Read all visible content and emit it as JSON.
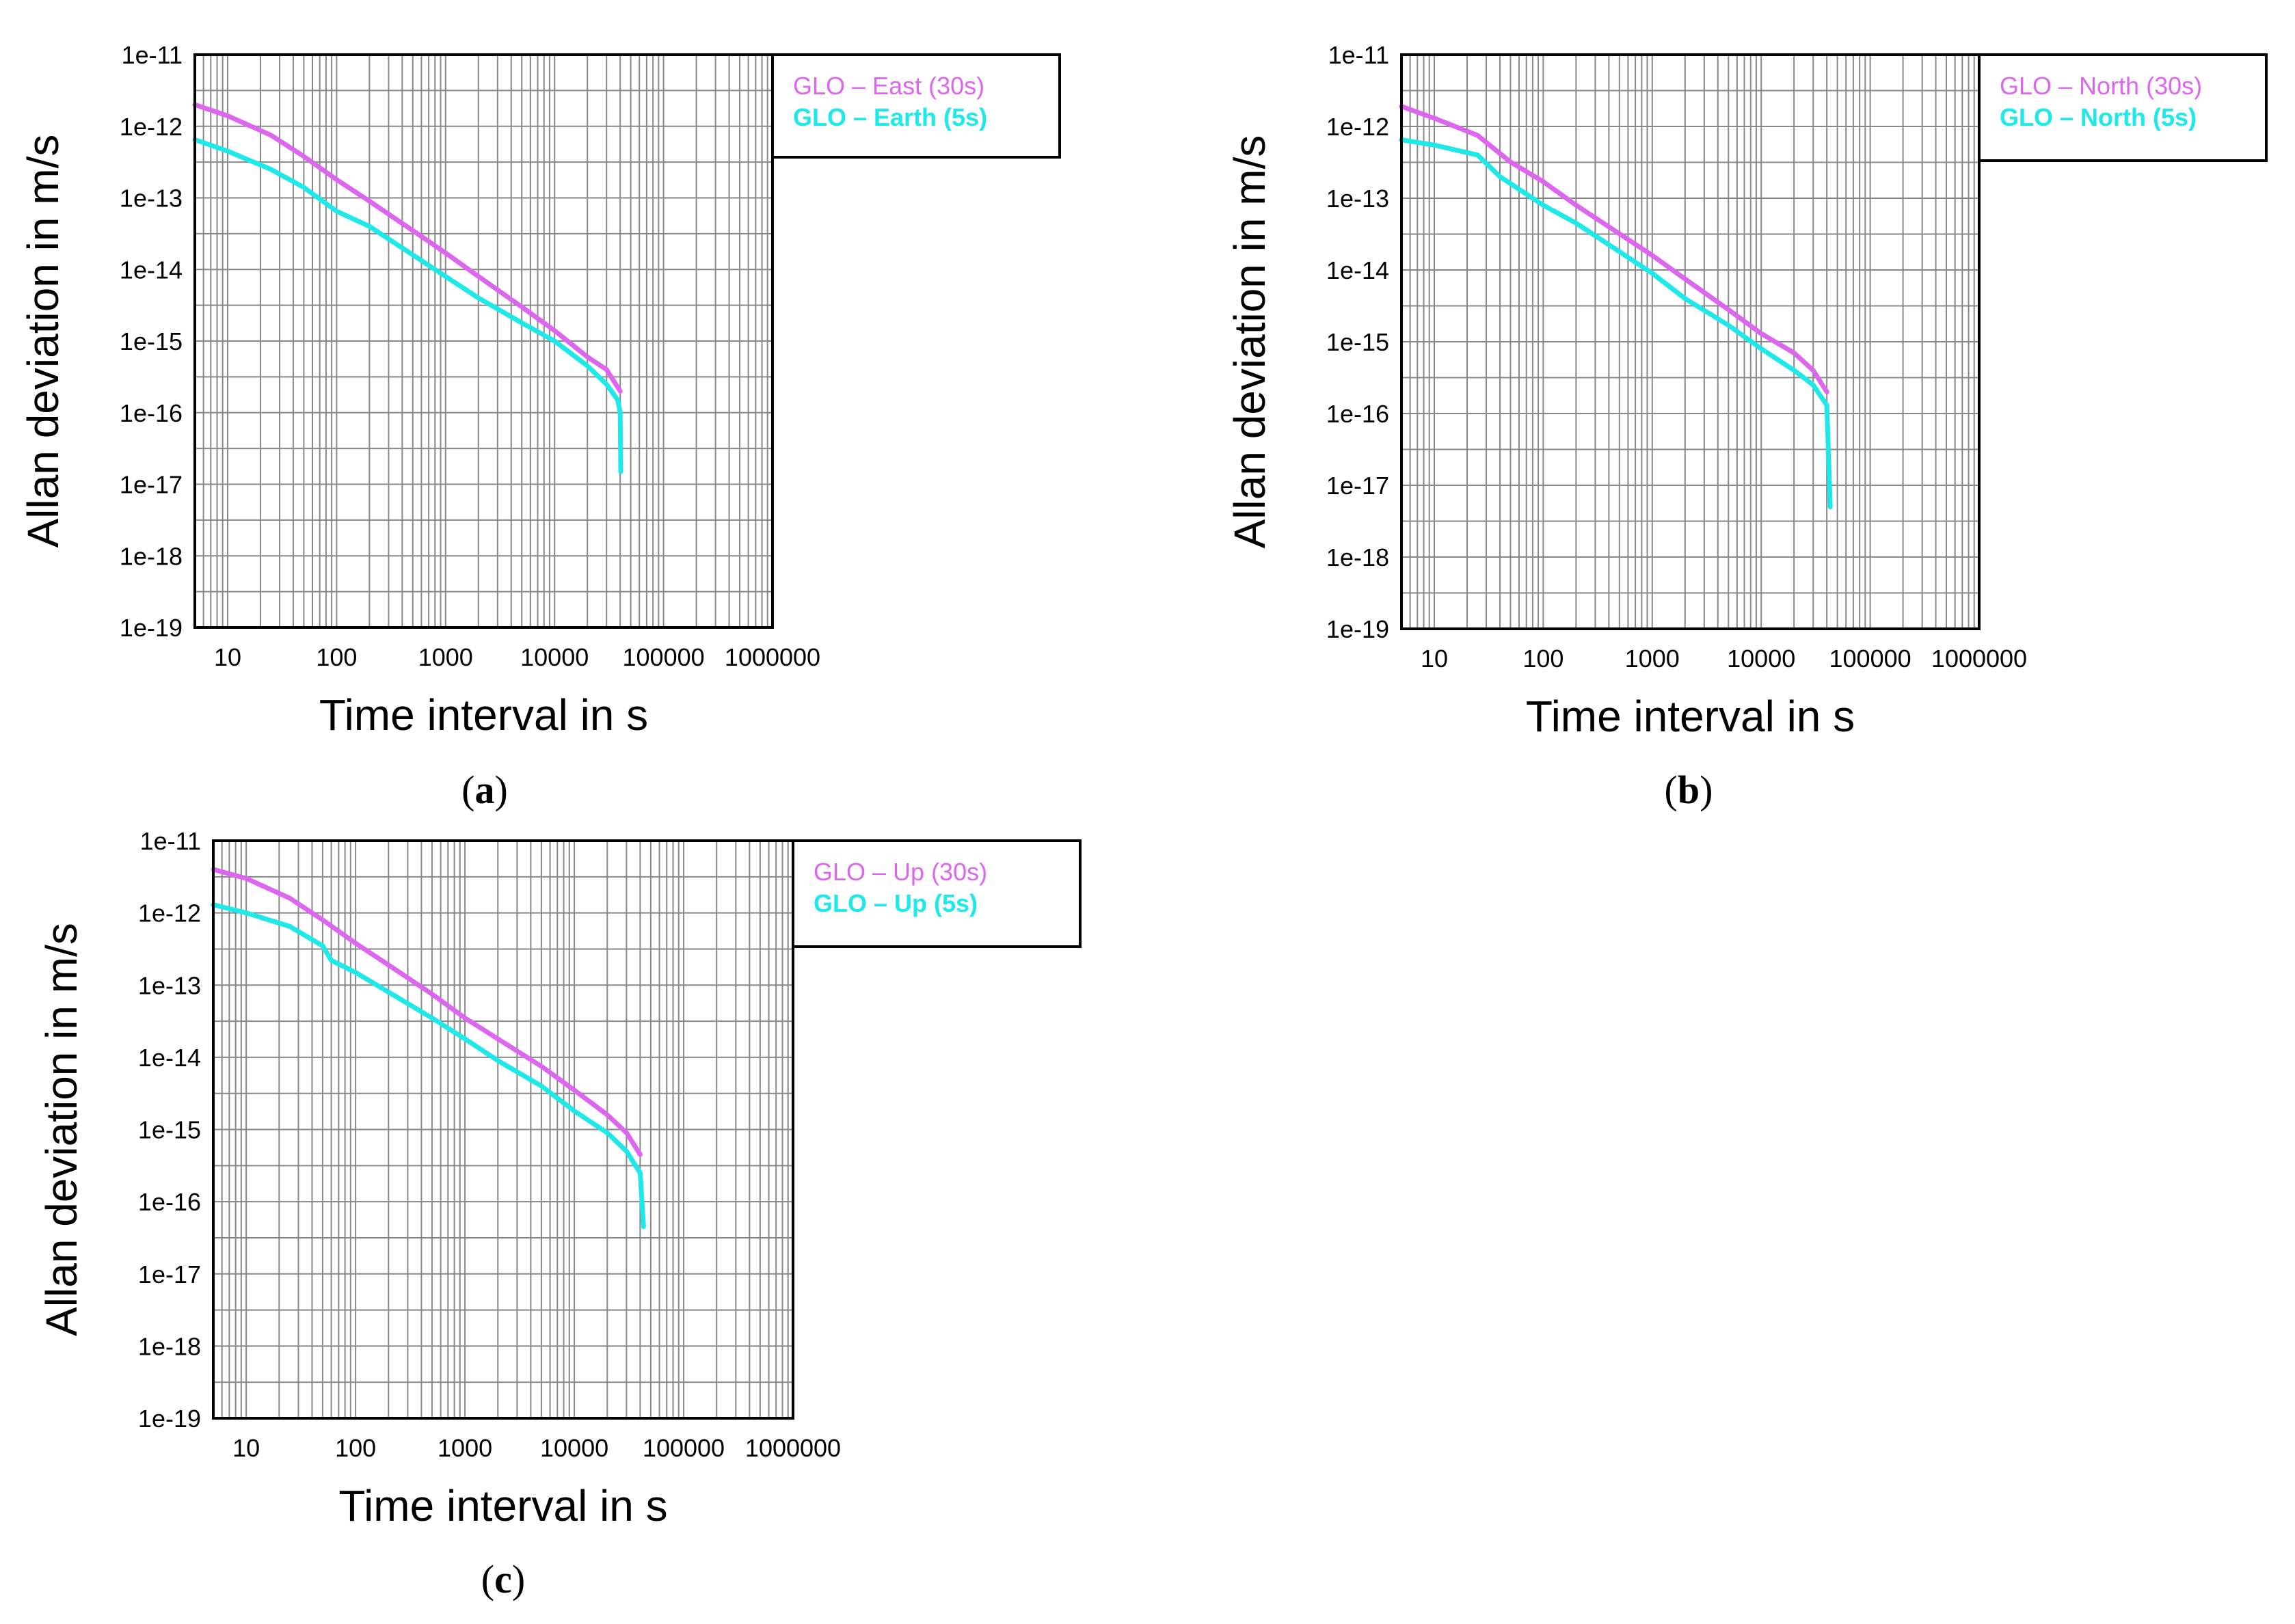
{
  "figure": {
    "colors": {
      "series_30s": "#dd66ee",
      "series_5s": "#1ee8e8"
    }
  },
  "chart_data": [
    {
      "type": "line",
      "panel_label": "a",
      "xlabel": "Time interval in s",
      "ylabel": "Allan deviation in m/s",
      "xscale": "log",
      "yscale": "log",
      "xlim": [
        5,
        1000000
      ],
      "ylim": [
        1e-19,
        1e-11
      ],
      "grid": true,
      "legend_position": "right, outside",
      "x_tick_labels": [
        "10",
        "100",
        "1000",
        "10000",
        "100000",
        "1000000"
      ],
      "y_tick_labels": [
        "1e-11",
        "1e-12",
        "1e-13",
        "1e-14",
        "1e-15",
        "1e-16",
        "1e-17",
        "1e-18",
        "1e-19"
      ],
      "series": [
        {
          "name": "GLO – East (30s)",
          "color": "#dd66ee",
          "x": [
            5,
            10,
            25,
            50,
            100,
            200,
            500,
            1000,
            2000,
            5000,
            10000,
            20000,
            30000,
            40000
          ],
          "y": [
            2e-12,
            1.4e-12,
            7.5e-13,
            3.8e-13,
            1.8e-13,
            9e-14,
            3.5e-14,
            1.7e-14,
            8e-15,
            3e-15,
            1.4e-15,
            6e-16,
            4e-16,
            2e-16
          ]
        },
        {
          "name": "GLO – Earth (5s)",
          "color": "#1ee8e8",
          "x": [
            5,
            10,
            25,
            50,
            100,
            200,
            500,
            1000,
            2000,
            5000,
            10000,
            20000,
            30000,
            38000,
            40000,
            40500
          ],
          "y": [
            6.5e-13,
            4.5e-13,
            2.5e-13,
            1.4e-13,
            6.5e-14,
            4e-14,
            1.6e-14,
            8e-15,
            4e-15,
            1.8e-15,
            1e-15,
            4.5e-16,
            2.5e-16,
            1.5e-16,
            1e-16,
            1.5e-17
          ]
        }
      ]
    },
    {
      "type": "line",
      "panel_label": "b",
      "xlabel": "Time interval in s",
      "ylabel": "Allan deviation in m/s",
      "xscale": "log",
      "yscale": "log",
      "xlim": [
        5,
        1000000
      ],
      "ylim": [
        1e-19,
        1e-11
      ],
      "grid": true,
      "legend_position": "right, outside",
      "x_tick_labels": [
        "10",
        "100",
        "1000",
        "10000",
        "100000",
        "1000000"
      ],
      "y_tick_labels": [
        "1e-11",
        "1e-12",
        "1e-13",
        "1e-14",
        "1e-15",
        "1e-16",
        "1e-17",
        "1e-18",
        "1e-19"
      ],
      "series": [
        {
          "name": "GLO – North (30s)",
          "color": "#dd66ee",
          "x": [
            5,
            10,
            25,
            50,
            100,
            200,
            500,
            1000,
            2000,
            5000,
            10000,
            20000,
            30000,
            40000
          ],
          "y": [
            1.9e-12,
            1.3e-12,
            7.5e-13,
            3.2e-13,
            1.7e-13,
            8e-14,
            3.2e-14,
            1.6e-14,
            7.5e-15,
            2.8e-15,
            1.3e-15,
            7e-16,
            4e-16,
            2e-16
          ]
        },
        {
          "name": "GLO – North (5s)",
          "color": "#1ee8e8",
          "x": [
            5,
            10,
            25,
            40,
            50,
            100,
            200,
            500,
            1000,
            2000,
            5000,
            10000,
            20000,
            30000,
            40000,
            43000
          ],
          "y": [
            6.5e-13,
            5.5e-13,
            4e-13,
            2e-13,
            1.6e-13,
            8e-14,
            4.5e-14,
            1.8e-14,
            9e-15,
            4e-15,
            1.7e-15,
            8e-16,
            4e-16,
            2.5e-16,
            1.3e-16,
            5e-18
          ]
        }
      ]
    },
    {
      "type": "line",
      "panel_label": "c",
      "xlabel": "Time interval in s",
      "ylabel": "Allan deviation in m/s",
      "xscale": "log",
      "yscale": "log",
      "xlim": [
        5,
        1000000
      ],
      "ylim": [
        1e-19,
        1e-11
      ],
      "grid": true,
      "legend_position": "right, outside",
      "x_tick_labels": [
        "10",
        "100",
        "1000",
        "10000",
        "100000",
        "1000000"
      ],
      "y_tick_labels": [
        "1e-11",
        "1e-12",
        "1e-13",
        "1e-14",
        "1e-15",
        "1e-16",
        "1e-17",
        "1e-18",
        "1e-19"
      ],
      "series": [
        {
          "name": "GLO – Up (30s)",
          "color": "#dd66ee",
          "x": [
            5,
            10,
            25,
            50,
            100,
            200,
            500,
            1000,
            2000,
            5000,
            10000,
            20000,
            30000,
            40000
          ],
          "y": [
            4e-12,
            3e-12,
            1.6e-12,
            8e-13,
            3.8e-13,
            1.9e-13,
            7.5e-14,
            3.5e-14,
            1.8e-14,
            7.5e-15,
            3.5e-15,
            1.6e-15,
            9e-16,
            4.5e-16
          ]
        },
        {
          "name": "GLO – Up (5s)",
          "color": "#1ee8e8",
          "x": [
            5,
            10,
            25,
            50,
            60,
            100,
            200,
            500,
            1000,
            2000,
            5000,
            10000,
            20000,
            30000,
            40000,
            43000
          ],
          "y": [
            1.3e-12,
            1e-12,
            6.5e-13,
            3.5e-13,
            2.2e-13,
            1.5e-13,
            8e-14,
            3.5e-14,
            1.8e-14,
            9e-15,
            4e-15,
            1.8e-15,
            9e-16,
            5e-16,
            2.5e-16,
            4.5e-17
          ]
        }
      ]
    }
  ]
}
